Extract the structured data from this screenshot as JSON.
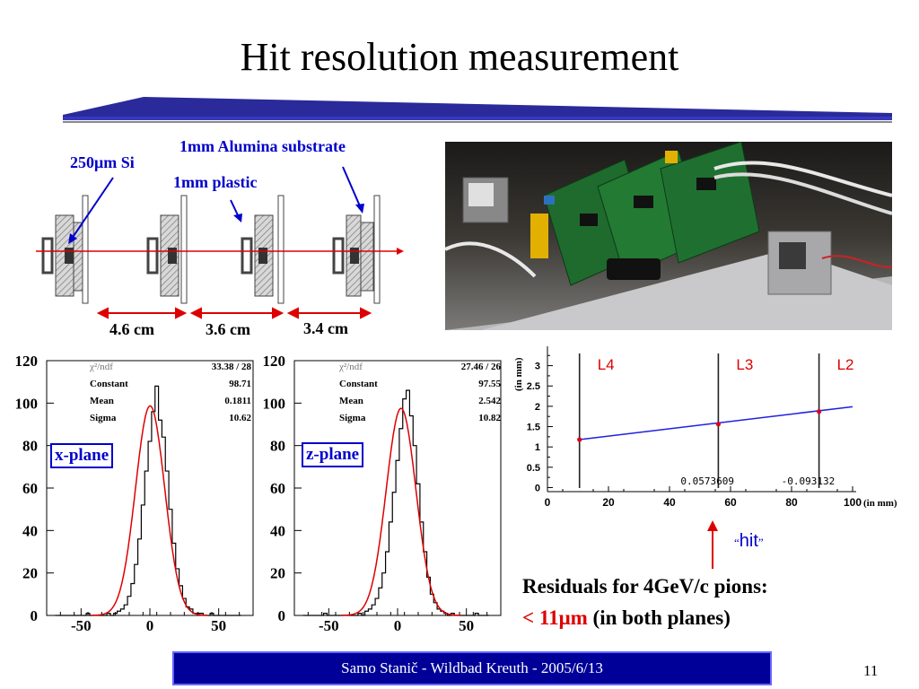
{
  "title": "Hit resolution measurement",
  "colors": {
    "accent_blue": "#0000cc",
    "fit_red": "#dd0000",
    "footer_bg": "#000099"
  },
  "diagram": {
    "label_si": "250μm Si",
    "label_alumina": "1mm Alumina substrate",
    "label_plastic": "1mm plastic",
    "distances": [
      "4.6 cm",
      "3.6 cm",
      "3.4 cm"
    ]
  },
  "photo": {
    "description_icon": "detector-setup-photo"
  },
  "summary": {
    "line1": "Residuals for 4GeV/c pions:",
    "line2_red": "< 11μm",
    "line2_rest": " (in both planes)"
  },
  "footer": {
    "text": "Samo Stanič - Wildbad Kreuth - 2005/6/13",
    "page_number": "11"
  },
  "chart_data": [
    {
      "type": "histogram",
      "plane_label": "x-plane",
      "xlim": [
        -75,
        75
      ],
      "ylim": [
        0,
        120
      ],
      "x_ticks": [
        -50,
        0,
        50
      ],
      "y_ticks": [
        0,
        20,
        40,
        60,
        80,
        100,
        120
      ],
      "stats": [
        {
          "key": "χ²/ndf",
          "value": "33.38   /   28"
        },
        {
          "key": "Constant",
          "value": "98.71"
        },
        {
          "key": "Mean",
          "value": "0.1811"
        },
        {
          "key": "Sigma",
          "value": "10.62"
        }
      ],
      "fit": {
        "constant": 98.71,
        "mean": 0.1811,
        "sigma": 10.62
      },
      "bin_width": 2.5,
      "bins_x": [
        -67.5,
        -65,
        -62.5,
        -60,
        -57.5,
        -55,
        -52.5,
        -50,
        -47.5,
        -45,
        -42.5,
        -40,
        -37.5,
        -35,
        -32.5,
        -30,
        -27.5,
        -25,
        -22.5,
        -20,
        -17.5,
        -15,
        -12.5,
        -10,
        -7.5,
        -5,
        -2.5,
        0,
        2.5,
        5,
        7.5,
        10,
        12.5,
        15,
        17.5,
        20,
        22.5,
        25,
        27.5,
        30,
        32.5,
        35,
        37.5,
        40,
        42.5,
        45,
        47.5,
        50,
        52.5,
        55,
        57.5,
        60,
        62.5,
        65
      ],
      "counts": [
        0,
        0,
        0,
        0,
        0,
        0,
        0,
        0,
        0,
        1,
        0,
        0,
        0,
        0,
        0,
        1,
        0,
        1,
        2,
        3,
        5,
        9,
        15,
        24,
        36,
        52,
        68,
        82,
        96,
        108,
        92,
        84,
        68,
        50,
        34,
        22,
        14,
        8,
        4,
        3,
        1,
        1,
        1,
        0,
        0,
        1,
        0,
        0,
        0,
        0,
        0,
        0,
        0,
        0
      ]
    },
    {
      "type": "histogram",
      "plane_label": "z-plane",
      "xlim": [
        -75,
        75
      ],
      "ylim": [
        0,
        120
      ],
      "x_ticks": [
        -50,
        0,
        50
      ],
      "y_ticks": [
        0,
        20,
        40,
        60,
        80,
        100,
        120
      ],
      "stats": [
        {
          "key": "χ²/ndf",
          "value": "27.46   /   26"
        },
        {
          "key": "Constant",
          "value": "97.55"
        },
        {
          "key": "Mean",
          "value": "2.542"
        },
        {
          "key": "Sigma",
          "value": "10.82"
        }
      ],
      "fit": {
        "constant": 97.55,
        "mean": 2.542,
        "sigma": 10.82
      },
      "bin_width": 2.5,
      "bins_x": [
        -67.5,
        -65,
        -62.5,
        -60,
        -57.5,
        -55,
        -52.5,
        -50,
        -47.5,
        -45,
        -42.5,
        -40,
        -37.5,
        -35,
        -32.5,
        -30,
        -27.5,
        -25,
        -22.5,
        -20,
        -17.5,
        -15,
        -12.5,
        -10,
        -7.5,
        -5,
        -2.5,
        0,
        2.5,
        5,
        7.5,
        10,
        12.5,
        15,
        17.5,
        20,
        22.5,
        25,
        27.5,
        30,
        32.5,
        35,
        37.5,
        40,
        42.5,
        45,
        47.5,
        50,
        52.5,
        55,
        57.5,
        60,
        62.5,
        65
      ],
      "counts": [
        0,
        0,
        0,
        0,
        0,
        0,
        1,
        0,
        0,
        0,
        0,
        0,
        0,
        0,
        0,
        0,
        1,
        0,
        2,
        3,
        5,
        8,
        13,
        20,
        30,
        44,
        58,
        73,
        88,
        102,
        106,
        94,
        80,
        62,
        44,
        30,
        18,
        10,
        6,
        3,
        2,
        1,
        0,
        1,
        0,
        0,
        0,
        0,
        0,
        0,
        1,
        0,
        0,
        0
      ]
    },
    {
      "type": "line",
      "x_label": "(in mm)",
      "y_label": "(in mm)",
      "xlim": [
        0,
        100
      ],
      "ylim": [
        -0.1,
        3.3
      ],
      "x_ticks": [
        0,
        20,
        40,
        60,
        80,
        100
      ],
      "y_ticks": [
        0,
        0.5,
        1,
        1.5,
        2,
        2.5,
        3
      ],
      "layers": [
        {
          "name": "L4",
          "x": 10.5
        },
        {
          "name": "L3",
          "x": 56
        },
        {
          "name": "L2",
          "x": 89
        }
      ],
      "points": [
        {
          "x": 10.5,
          "y": 1.18
        },
        {
          "x": 56,
          "y": 1.56
        },
        {
          "x": 89,
          "y": 1.87
        }
      ],
      "line": {
        "x": [
          10.5,
          100
        ],
        "y": [
          1.18,
          1.99
        ]
      },
      "residual_labels": [
        {
          "x": 56,
          "text": "0.0573609"
        },
        {
          "x": 89,
          "text": "-0.093132"
        }
      ],
      "hit_label": "hit"
    }
  ]
}
